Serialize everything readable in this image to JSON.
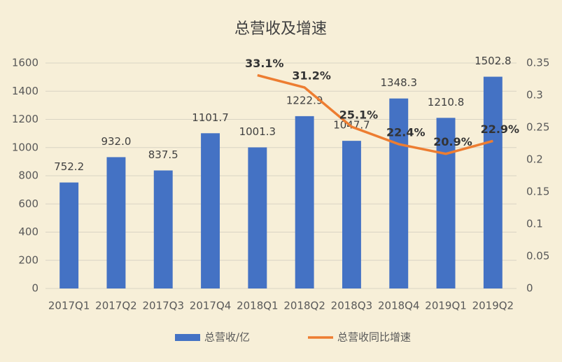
{
  "chart_data": {
    "type": "bar",
    "title": "总营收及增速",
    "categories": [
      "2017Q1",
      "2017Q2",
      "2017Q3",
      "2017Q4",
      "2018Q1",
      "2018Q2",
      "2018Q3",
      "2018Q4",
      "2019Q1",
      "2019Q2"
    ],
    "series": [
      {
        "name": "总营收/亿",
        "type": "bar",
        "color": "#4472c4",
        "values": [
          752.2,
          932.0,
          837.5,
          1101.7,
          1001.3,
          1222.9,
          1047.7,
          1348.3,
          1210.8,
          1502.8
        ],
        "value_labels": [
          "752.2",
          "932.0",
          "837.5",
          "1101.7",
          "1001.3",
          "1222.9",
          "1047.7",
          "1348.3",
          "1210.8",
          "1502.8"
        ]
      },
      {
        "name": "总营收同比增速",
        "type": "line",
        "axis": "y2",
        "color": "#ed7d31",
        "values": [
          null,
          null,
          null,
          null,
          0.331,
          0.312,
          0.251,
          0.224,
          0.209,
          0.229
        ],
        "value_labels": [
          null,
          null,
          null,
          null,
          "33.1%",
          "31.2%",
          "25.1%",
          "22.4%",
          "20.9%",
          "22.9%"
        ]
      }
    ],
    "ylim": [
      0,
      1600
    ],
    "yticks": [
      0,
      200,
      400,
      600,
      800,
      1000,
      1200,
      1400,
      1600
    ],
    "y2lim": [
      0,
      0.35
    ],
    "y2ticks": [
      0,
      0.05,
      0.1,
      0.15,
      0.2,
      0.25,
      0.3,
      0.35
    ],
    "grid": true,
    "legend": "bottom"
  }
}
